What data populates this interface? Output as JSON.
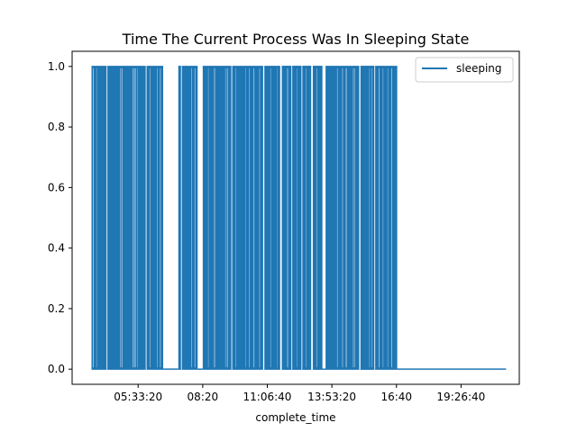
{
  "chart_data": {
    "type": "line",
    "title": "Time The Current Process Was In Sleeping State",
    "xlabel": "complete_time",
    "ylabel": "",
    "x_unit": "time of day",
    "xlim": [
      "02:43",
      "21:57"
    ],
    "ylim": [
      -0.05,
      1.05
    ],
    "x_ticks": [
      "05:33:20",
      "08:20",
      "11:06:40",
      "13:53:20",
      "16:40",
      "19:26:40"
    ],
    "y_ticks": [
      "0.0",
      "0.2",
      "0.4",
      "0.6",
      "0.8",
      "1.0"
    ],
    "grid": false,
    "legend": {
      "position": "top-right"
    },
    "series": [
      {
        "name": "sleeping",
        "color": "#1f77b4",
        "x_start": "03:33",
        "x_end": "21:23",
        "active_until": "16:42",
        "high_intervals": [
          [
            "03:33",
            "04:12"
          ],
          [
            "04:14",
            "05:53"
          ],
          [
            "05:55",
            "06:38"
          ],
          [
            "07:17",
            "07:24"
          ],
          [
            "07:26",
            "08:07"
          ],
          [
            "08:20",
            "09:34"
          ],
          [
            "09:36",
            "10:56"
          ],
          [
            "10:59",
            "11:40"
          ],
          [
            "11:44",
            "12:09"
          ],
          [
            "12:11",
            "12:35"
          ],
          [
            "12:37",
            "13:00"
          ],
          [
            "13:04",
            "13:29"
          ],
          [
            "13:37",
            "15:04"
          ],
          [
            "15:07",
            "15:43"
          ],
          [
            "15:45",
            "16:42"
          ]
        ],
        "low_gaps": [
          [
            "06:38",
            "07:17"
          ],
          [
            "08:07",
            "08:20"
          ],
          [
            "13:29",
            "13:37"
          ]
        ],
        "tail_value": 0.0
      }
    ]
  }
}
